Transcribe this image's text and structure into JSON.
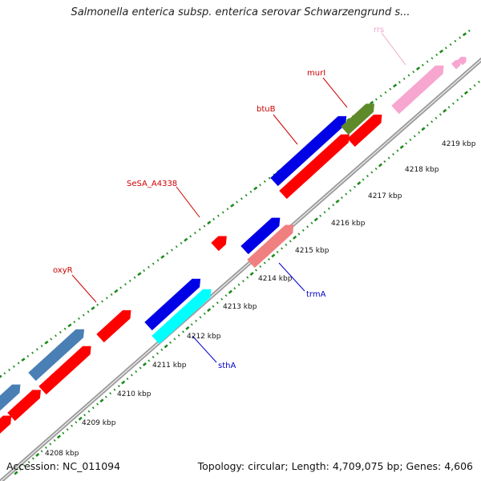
{
  "title": "Salmonella enterica subsp. enterica serovar Schwarzengrund s...",
  "accession": "Accession: NC_011094",
  "summary": "Topology: circular; Length: 4,709,075 bp; Genes: 4,606",
  "colors": {
    "backbone": "#9e9e9e",
    "tick": "#1d8a1d",
    "cds": "#ff0000",
    "blue": "#0000e6",
    "steelblue": "#4a7fb5",
    "cyan": "#00ffff",
    "olive": "#5e8a2a",
    "salmon": "#f08080",
    "pink": "#f7a6d0",
    "label_red": "#cc0000",
    "label_blue": "#0000cc",
    "label_pink": "#f2a6cc"
  },
  "scale": {
    "unit": "kbp",
    "ticks": [
      {
        "kbp": 4208,
        "label": "4208 kbp"
      },
      {
        "kbp": 4209,
        "label": "4209 kbp"
      },
      {
        "kbp": 4210,
        "label": "4210 kbp"
      },
      {
        "kbp": 4211,
        "label": "4211 kbp"
      },
      {
        "kbp": 4212,
        "label": "4212 kbp"
      },
      {
        "kbp": 4213,
        "label": "4213 kbp"
      },
      {
        "kbp": 4214,
        "label": "4214 kbp"
      },
      {
        "kbp": 4215,
        "label": "4215 kbp"
      },
      {
        "kbp": 4216,
        "label": "4216 kbp"
      },
      {
        "kbp": 4217,
        "label": "4217 kbp"
      },
      {
        "kbp": 4218,
        "label": "4218 kbp"
      },
      {
        "kbp": 4219,
        "label": "4219 kbp"
      }
    ]
  },
  "gene_labels": [
    {
      "text": "oxyR",
      "color": "label_red"
    },
    {
      "text": "SeSA_A4338",
      "color": "label_red"
    },
    {
      "text": "btuB",
      "color": "label_red"
    },
    {
      "text": "murI",
      "color": "label_red"
    },
    {
      "text": "rrs",
      "color": "label_pink"
    },
    {
      "text": "trmA",
      "color": "label_blue"
    },
    {
      "text": "sthA",
      "color": "label_blue"
    }
  ]
}
